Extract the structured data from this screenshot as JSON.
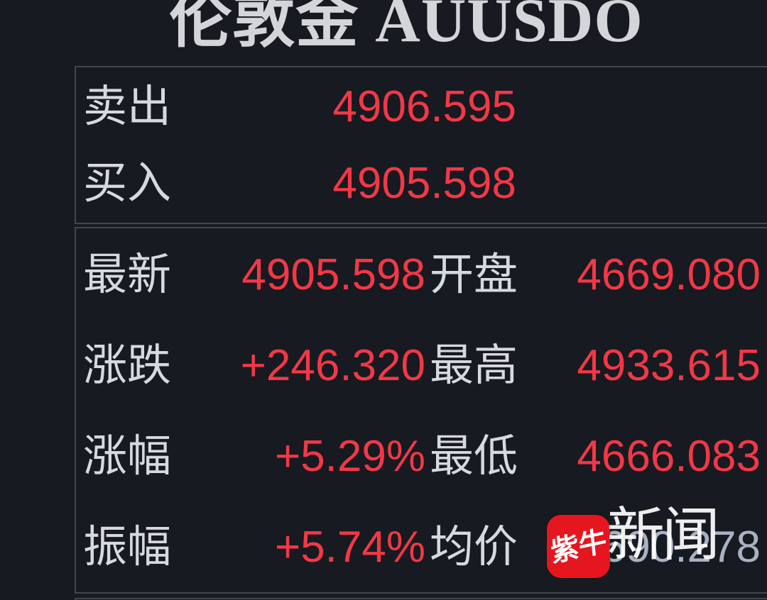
{
  "title": "伦敦金 AUUSDO",
  "colors": {
    "background": "#171a20",
    "panel_border": "#42464e",
    "label_text": "#d6d9df",
    "price_up_red": "#f23847",
    "muted_value": "#a8b2c3",
    "watermark_icon_red": "#e5161f"
  },
  "quote_panel": {
    "rows": [
      {
        "label": "卖出",
        "value": "4906.595"
      },
      {
        "label": "买入",
        "value": "4905.598"
      }
    ]
  },
  "stats_panel": {
    "rows": [
      {
        "label_left": "最新",
        "value_left": "4905.598",
        "label_right": "开盘",
        "value_right": "4669.080"
      },
      {
        "label_left": "涨跌",
        "value_left": "+246.320",
        "label_right": "最高",
        "value_right": "4933.615"
      },
      {
        "label_left": "涨幅",
        "value_left": "+5.29%",
        "label_right": "最低",
        "value_right": "4666.083"
      },
      {
        "label_left": "振幅",
        "value_left": "+5.74%",
        "label_right": "均价",
        "value_right": "4690.278"
      }
    ]
  },
  "watermark": {
    "icon_text": "紫牛",
    "label": "新闻"
  }
}
